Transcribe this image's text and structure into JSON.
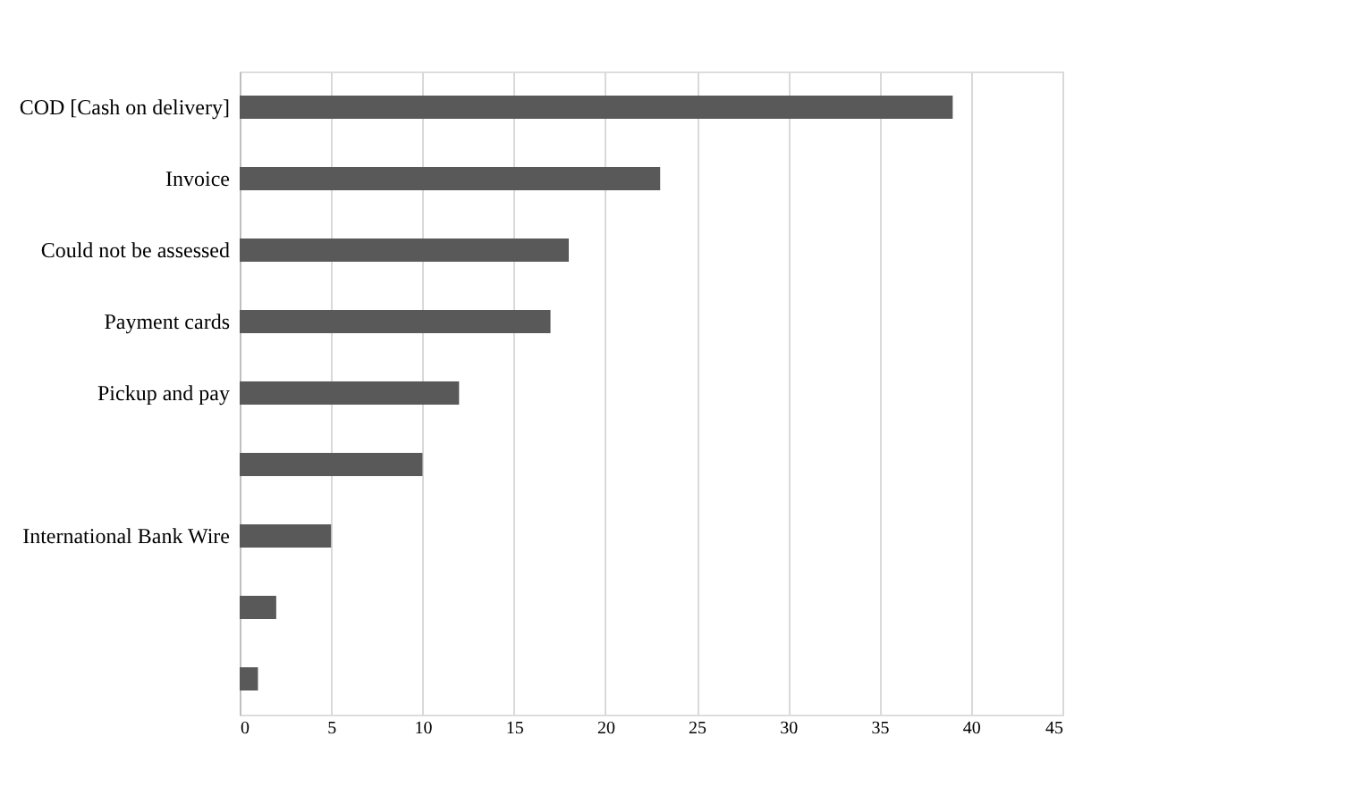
{
  "chart_data": {
    "type": "bar",
    "orientation": "horizontal",
    "categories": [
      "COD [Cash on delivery]",
      "Invoice",
      "Could not be assessed",
      "Payment cards",
      "Pickup and pay",
      null,
      "International Bank Wire",
      null,
      null
    ],
    "values": [
      39,
      23,
      18,
      17,
      12,
      10,
      5,
      2,
      1
    ],
    "color": "#595959",
    "xlim": [
      0,
      45
    ],
    "xticks": [
      0,
      5,
      10,
      15,
      20,
      25,
      30,
      35,
      40,
      45
    ],
    "grid": "x"
  }
}
